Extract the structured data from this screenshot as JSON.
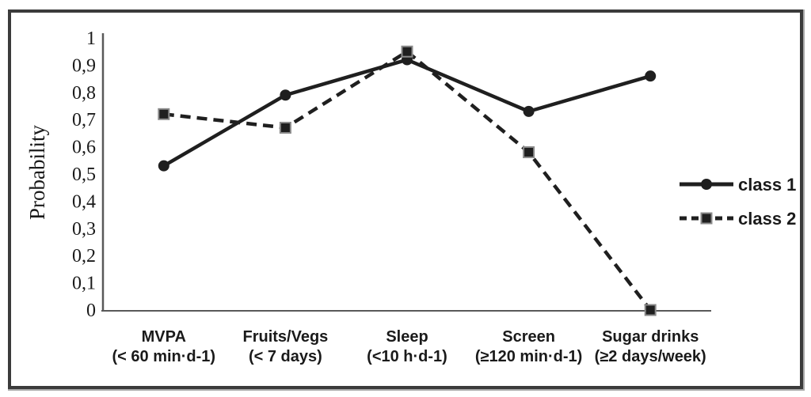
{
  "figure": {
    "background": "#ffffff",
    "border_color": "#3b3b3b"
  },
  "chart_data": {
    "type": "line",
    "title": "",
    "xlabel": "",
    "ylabel": "Probability",
    "ylim": [
      0,
      1
    ],
    "ytick_step": 0.1,
    "ytick_labels": [
      "0",
      "0,1",
      "0,2",
      "0,3",
      "0,4",
      "0,5",
      "0,6",
      "0,7",
      "0,8",
      "0,9",
      "1"
    ],
    "grid": false,
    "legend_position": "right",
    "line_color": "#1f1f1f",
    "axis_color": "#595959",
    "marker_outline_color": "#8a8a8a",
    "categories": [
      {
        "line1": "MVPA",
        "line2": "(< 60 min·d-1)"
      },
      {
        "line1": "Fruits/Vegs",
        "line2": "(< 7 days)"
      },
      {
        "line1": "Sleep",
        "line2": "(<10 h·d-1)"
      },
      {
        "line1": "Screen",
        "line2": "(≥120 min·d-1)"
      },
      {
        "line1": "Sugar drinks",
        "line2": "(≥2 days/week)"
      }
    ],
    "series": [
      {
        "name": "class 1",
        "marker": "circle",
        "line_style": "solid",
        "values": [
          0.53,
          0.79,
          0.92,
          0.73,
          0.86
        ]
      },
      {
        "name": "class 2",
        "marker": "square",
        "line_style": "dashed",
        "values": [
          0.72,
          0.67,
          0.95,
          0.58,
          0.0
        ]
      }
    ]
  }
}
